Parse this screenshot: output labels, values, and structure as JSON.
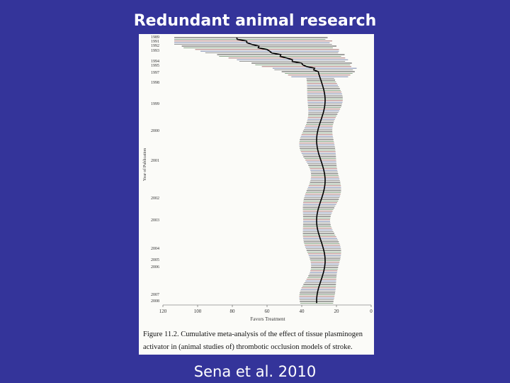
{
  "slide": {
    "title": "Redundant animal research",
    "footer": "Sena et al. 2010"
  },
  "figure": {
    "y_label": "Year of Publication",
    "x_label": "Favors Treatment",
    "x_ticks": [
      120,
      100,
      80,
      60,
      40,
      20,
      0
    ],
    "years": [
      "1989",
      "1991",
      "1992",
      "1993",
      "1994",
      "1995",
      "1997",
      "1998",
      "1999",
      "2000",
      "2001",
      "2002",
      "2003",
      "2004",
      "2005",
      "2006",
      "2007",
      "2008"
    ],
    "caption": [
      "Figure 11.2. Cumulative meta-analysis of the effect of tissue plasminogen",
      "activator in (animal studies of) thrombotic occlusion models of stroke."
    ]
  }
}
